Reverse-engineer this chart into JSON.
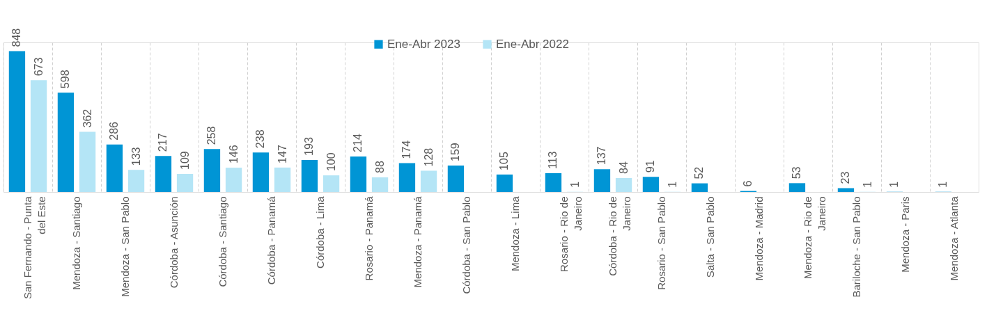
{
  "chart_data": {
    "type": "bar",
    "categories": [
      "San Fernando - Punta del Este",
      "Mendoza - Santiago",
      "Mendoza - San Pablo",
      "Córdoba - Asunción",
      "Córdoba - Santiago",
      "Córdoba - Panamá",
      "Córdoba - Lima",
      "Rosario - Panamá",
      "Mendoza - Panamá",
      "Córdoba - San Pablo",
      "Mendoza - Lima",
      "Rosario - Rio de Janeiro",
      "Córdoba - Rio de Janeiro",
      "Rosario - San Pablo",
      "Salta - San Pablo",
      "Mendoza - Madrid",
      "Mendoza - Rio de Janeiro",
      "Bariloche - San Pablo",
      "Mendoza - Paris",
      "Mendoza - Atlanta"
    ],
    "series": [
      {
        "name": "Ene-Abr 2023",
        "color": "#0095d5",
        "values": [
          848,
          598,
          286,
          217,
          258,
          238,
          193,
          214,
          174,
          159,
          105,
          113,
          137,
          91,
          52,
          6,
          53,
          23,
          1,
          1
        ]
      },
      {
        "name": "Ene-Abr 2022",
        "color": "#b4e5f6",
        "values": [
          673,
          362,
          133,
          109,
          146,
          147,
          100,
          88,
          128,
          null,
          null,
          1,
          84,
          1,
          null,
          null,
          null,
          1,
          null,
          null
        ]
      }
    ],
    "data_labels": true,
    "legend": "top",
    "grid": "x"
  }
}
